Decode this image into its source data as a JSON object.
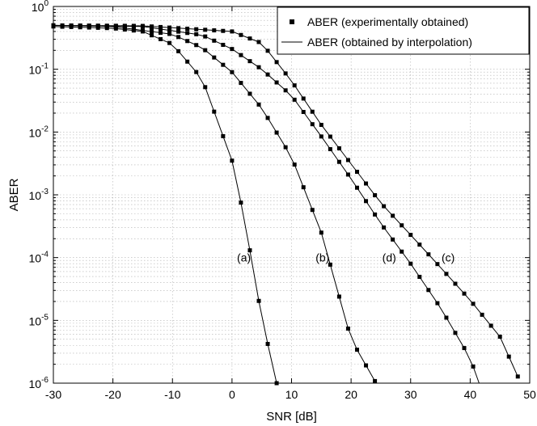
{
  "chart_data": {
    "type": "line",
    "xlabel": "SNR [dB]",
    "ylabel": "ABER",
    "xlim": [
      -30,
      50
    ],
    "ylim": [
      1e-06,
      1
    ],
    "y_scale": "log",
    "grid": true,
    "legend_position": "top-right",
    "x_ticks": [
      "-30",
      "-20",
      "-10",
      "0",
      "10",
      "20",
      "30",
      "40",
      "50"
    ],
    "y_ticks": [
      {
        "base": "10",
        "exp": "0"
      },
      {
        "base": "10",
        "exp": "-1"
      },
      {
        "base": "10",
        "exp": "-2"
      },
      {
        "base": "10",
        "exp": "-3"
      },
      {
        "base": "10",
        "exp": "-4"
      },
      {
        "base": "10",
        "exp": "-5"
      },
      {
        "base": "10",
        "exp": "-6"
      }
    ],
    "legend": [
      {
        "label": "ABER (experimentally obtained)",
        "style": "marker"
      },
      {
        "label": "ABER (obtained by interpolation)",
        "style": "line"
      }
    ],
    "curve_labels": [
      {
        "text": "(a)",
        "x": 2,
        "y": 0.0001
      },
      {
        "text": "(b)",
        "x": 15.2,
        "y": 0.0001
      },
      {
        "text": "(d)",
        "x": 26.4,
        "y": 0.0001
      },
      {
        "text": "(c)",
        "x": 36.3,
        "y": 0.0001
      }
    ],
    "x_step": 1.5,
    "series": [
      {
        "id": "a",
        "x": [
          -30,
          10
        ],
        "anchors": [
          [
            -30,
            0.48
          ],
          [
            -20,
            0.45
          ],
          [
            -15,
            0.4
          ],
          [
            -10,
            0.25
          ],
          [
            -5,
            0.07
          ],
          [
            0,
            0.0035
          ],
          [
            2,
            0.00045
          ],
          [
            5,
            1.1e-05
          ],
          [
            7.5,
            1e-06
          ]
        ]
      },
      {
        "id": "b",
        "x": [
          -30,
          25
        ],
        "anchors": [
          [
            -30,
            0.5
          ],
          [
            -20,
            0.48
          ],
          [
            -10,
            0.36
          ],
          [
            -5,
            0.22
          ],
          [
            0,
            0.09
          ],
          [
            5,
            0.024
          ],
          [
            10,
            0.004
          ],
          [
            15,
            0.00025
          ],
          [
            20,
            5e-06
          ],
          [
            24.2,
            1e-06
          ]
        ]
      },
      {
        "id": "c",
        "x": [
          -30,
          49
        ],
        "anchors": [
          [
            -30,
            0.5
          ],
          [
            -15,
            0.49
          ],
          [
            0,
            0.4
          ],
          [
            5,
            0.26
          ],
          [
            10,
            0.065
          ],
          [
            15,
            0.013
          ],
          [
            20,
            0.0031
          ],
          [
            25,
            0.00074
          ],
          [
            30,
            0.00023
          ],
          [
            35,
            7e-05
          ],
          [
            40,
            2.1e-05
          ],
          [
            45,
            5.5e-06
          ],
          [
            48.5,
            1e-06
          ]
        ]
      },
      {
        "id": "d",
        "x": [
          -30,
          42
        ],
        "anchors": [
          [
            -30,
            0.5
          ],
          [
            -15,
            0.48
          ],
          [
            -5,
            0.35
          ],
          [
            0,
            0.21
          ],
          [
            5,
            0.1
          ],
          [
            10,
            0.038
          ],
          [
            15,
            0.0085
          ],
          [
            20,
            0.0018
          ],
          [
            25,
            0.00035
          ],
          [
            30,
            8e-05
          ],
          [
            35,
            1.6e-05
          ],
          [
            40,
            2.5e-06
          ],
          [
            41.5,
            1e-06
          ]
        ]
      }
    ]
  }
}
